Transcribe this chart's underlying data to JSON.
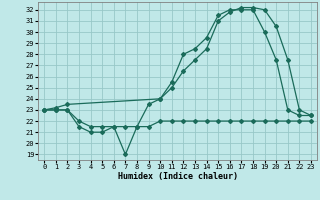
{
  "title": "",
  "xlabel": "Humidex (Indice chaleur)",
  "bg_color": "#c0e8e8",
  "grid_color": "#98c8c8",
  "line_color": "#1a6b5a",
  "xlim": [
    -0.5,
    23.5
  ],
  "ylim": [
    18.5,
    32.7
  ],
  "yticks": [
    19,
    20,
    21,
    22,
    23,
    24,
    25,
    26,
    27,
    28,
    29,
    30,
    31,
    32
  ],
  "xticks": [
    0,
    1,
    2,
    3,
    4,
    5,
    6,
    7,
    8,
    9,
    10,
    11,
    12,
    13,
    14,
    15,
    16,
    17,
    18,
    19,
    20,
    21,
    22,
    23
  ],
  "curve1_x": [
    0,
    1,
    2,
    3,
    4,
    5,
    6,
    7,
    8,
    9,
    10,
    11,
    12,
    13,
    14,
    15,
    16,
    17,
    18,
    19,
    20,
    21,
    22,
    23
  ],
  "curve1_y": [
    23,
    23,
    23,
    21.5,
    21,
    21,
    21.5,
    19,
    21.5,
    23.5,
    24,
    25.5,
    28,
    28.5,
    29.5,
    31.5,
    32,
    32,
    32,
    30,
    27.5,
    23,
    22.5,
    22.5
  ],
  "curve2_x": [
    0,
    1,
    2,
    3,
    4,
    5,
    6,
    7,
    8,
    9,
    10,
    11,
    12,
    13,
    14,
    15,
    16,
    17,
    18,
    19,
    20,
    21,
    22,
    23
  ],
  "curve2_y": [
    23,
    23,
    23,
    22,
    21.5,
    21.5,
    21.5,
    21.5,
    21.5,
    21.5,
    22,
    22,
    22,
    22,
    22,
    22,
    22,
    22,
    22,
    22,
    22,
    22,
    22,
    22
  ],
  "curve3_x": [
    0,
    1,
    2,
    10,
    11,
    12,
    13,
    14,
    15,
    16,
    17,
    18,
    19,
    20,
    21,
    22,
    23
  ],
  "curve3_y": [
    23,
    23.2,
    23.5,
    24,
    25,
    26.5,
    27.5,
    28.5,
    31,
    31.8,
    32.2,
    32.2,
    32,
    30.5,
    27.5,
    23,
    22.5
  ]
}
